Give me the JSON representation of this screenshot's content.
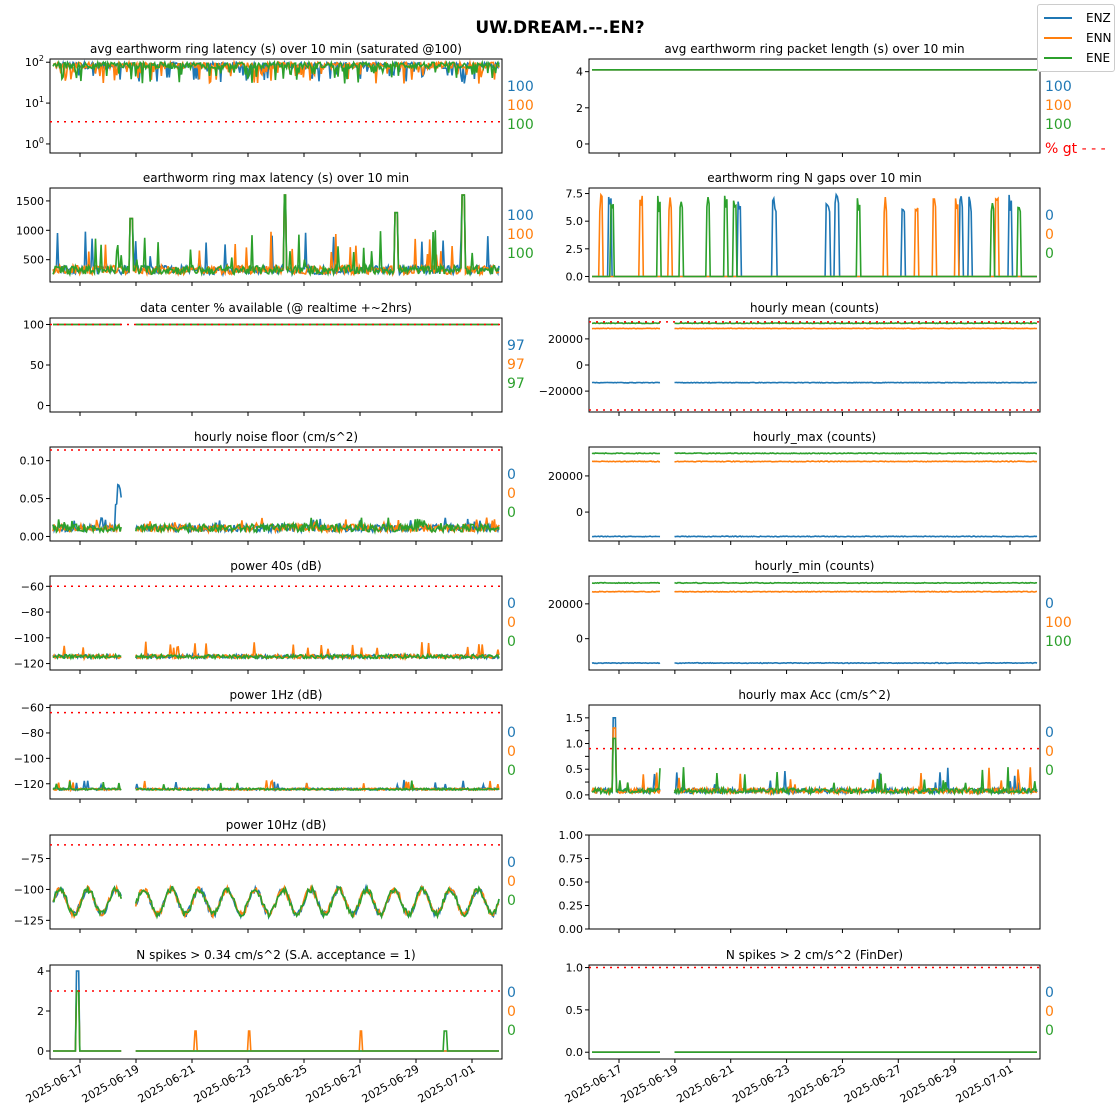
{
  "suptitle": "UW.DREAM.--.EN?",
  "legend": [
    {
      "name": "ENZ",
      "color": "#1f77b4"
    },
    {
      "name": "ENN",
      "color": "#ff7f0e"
    },
    {
      "name": "ENE",
      "color": "#2ca02c"
    }
  ],
  "threshold_color": "#ff0000",
  "date_ticks": [
    "2025-06-17",
    "2025-06-19",
    "2025-06-21",
    "2025-06-23",
    "2025-06-25",
    "2025-06-27",
    "2025-06-29",
    "2025-07-01"
  ],
  "chart_data": [
    {
      "type": "line",
      "title": "avg earthworm ring latency (s)   over 10 min (saturated @100)",
      "yscale": "log",
      "ylim": [
        0.6,
        120
      ],
      "yticks": [
        1,
        10,
        100
      ],
      "yticklabels": [
        "10^0",
        "10^1",
        "10^2"
      ],
      "threshold": 3.5,
      "pct": [
        "100",
        "100",
        "100"
      ],
      "pattern": "latency",
      "base": 85,
      "xticklabels": false
    },
    {
      "type": "line",
      "title": "avg earthworm ring packet length (s)   over 10 min",
      "ylim": [
        -0.5,
        4.7
      ],
      "yticks": [
        0,
        2,
        4
      ],
      "yticklabels": [
        "0",
        "2",
        "4"
      ],
      "threshold": null,
      "pct": [
        "100",
        "100",
        "100"
      ],
      "pct_label": "% gt - - -",
      "pattern": "flat",
      "base": 4.1,
      "xticklabels": false
    },
    {
      "type": "line",
      "title": "earthworm ring max latency (s)   over 10 min",
      "ylim": [
        120,
        1720
      ],
      "yticks": [
        500,
        1000,
        1500
      ],
      "yticklabels": [
        "500",
        "1000",
        "1500"
      ],
      "threshold": null,
      "pct": [
        "100",
        "100",
        "100"
      ],
      "pattern": "maxlat",
      "base": 300,
      "xticklabels": false
    },
    {
      "type": "line",
      "title": "earthworm ring N gaps   over 10 min",
      "ylim": [
        -0.5,
        8
      ],
      "yticks": [
        0,
        2.5,
        5,
        7.5
      ],
      "yticklabels": [
        "0.0",
        "2.5",
        "5.0",
        "7.5"
      ],
      "threshold": null,
      "pct": [
        "0",
        "0",
        "0"
      ],
      "pattern": "gaps",
      "base": 0,
      "xticklabels": false
    },
    {
      "type": "line",
      "title": "data center % available (@ realtime +~2hrs)",
      "ylim": [
        -8,
        108
      ],
      "yticks": [
        0,
        50,
        100
      ],
      "yticklabels": [
        "0",
        "50",
        "100"
      ],
      "threshold": 100,
      "pct": [
        "97",
        "97",
        "97"
      ],
      "pattern": "avail",
      "base": 100,
      "xticklabels": false
    },
    {
      "type": "line",
      "title": "hourly mean (counts)",
      "ylim": [
        -36000,
        36000
      ],
      "yticks": [
        -20000,
        0,
        20000
      ],
      "yticklabels": [
        "−20000",
        "0",
        "20000"
      ],
      "threshold": 33000,
      "threshold2": -34500,
      "pct": [
        "",
        "",
        ""
      ],
      "pattern": "const",
      "values": [
        -13500,
        28000,
        32000
      ],
      "xticklabels": false
    },
    {
      "type": "line",
      "title": "hourly noise floor (cm/s^2)",
      "ylim": [
        -0.006,
        0.118
      ],
      "yticks": [
        0,
        0.05,
        0.1
      ],
      "yticklabels": [
        "0.00",
        "0.05",
        "0.10"
      ],
      "threshold": 0.114,
      "pct": [
        "0",
        "0",
        "0"
      ],
      "pattern": "noise",
      "base": 0.008,
      "xticklabels": false
    },
    {
      "type": "line",
      "title": "hourly_max (counts)",
      "ylim": [
        -16000,
        36000
      ],
      "yticks": [
        0,
        20000
      ],
      "yticklabels": [
        "0",
        "20000"
      ],
      "threshold": null,
      "pct": [
        "",
        "",
        ""
      ],
      "pattern": "const",
      "values": [
        -13500,
        28000,
        32500
      ],
      "xticklabels": false
    },
    {
      "type": "line",
      "title": "power 40s (dB)",
      "ylim": [
        -125,
        -52
      ],
      "yticks": [
        -120,
        -100,
        -80,
        -60
      ],
      "yticklabels": [
        "−120",
        "−100",
        "−80",
        "−60"
      ],
      "threshold": -60,
      "pct": [
        "0",
        "0",
        "0"
      ],
      "pattern": "p40",
      "base": -115,
      "xticklabels": false
    },
    {
      "type": "line",
      "title": "hourly_min (counts)",
      "ylim": [
        -18000,
        36000
      ],
      "yticks": [
        0,
        20000
      ],
      "yticklabels": [
        "0",
        "20000"
      ],
      "threshold": null,
      "pct": [
        "0",
        "100",
        "100"
      ],
      "pattern": "const",
      "values": [
        -14000,
        27000,
        32000
      ],
      "xticklabels": false
    },
    {
      "type": "line",
      "title": "power 1Hz (dB)",
      "ylim": [
        -132,
        -58
      ],
      "yticks": [
        -120,
        -100,
        -80,
        -60
      ],
      "yticklabels": [
        "−120",
        "−100",
        "−80",
        "−60"
      ],
      "threshold": -64,
      "pct": [
        "0",
        "0",
        "0"
      ],
      "pattern": "p1",
      "base": -125,
      "xticklabels": false
    },
    {
      "type": "line",
      "title": "hourly max Acc (cm/s^2)",
      "ylim": [
        -0.08,
        1.75
      ],
      "yticks": [
        0,
        0.25,
        0.5,
        0.75,
        1,
        1.25,
        1.5
      ],
      "yticklabels": [
        "0.0",
        "",
        "0.5",
        "",
        "1.0",
        "",
        "1.5"
      ],
      "threshold": 0.9,
      "pct": [
        "0",
        "0",
        "0"
      ],
      "pattern": "acc",
      "base": 0.08,
      "xticklabels": false
    },
    {
      "type": "line",
      "title": "power 10Hz (dB)",
      "ylim": [
        -132,
        -56
      ],
      "yticks": [
        -125,
        -100,
        -75
      ],
      "yticklabels": [
        "−125",
        "−100",
        "−75"
      ],
      "threshold": -64,
      "pct": [
        "0",
        "0",
        "0"
      ],
      "pattern": "p10",
      "base": -110,
      "xticklabels": false
    },
    {
      "type": "line",
      "title": "",
      "ylim": [
        0,
        1
      ],
      "yticks": [
        0,
        0.25,
        0.5,
        0.75,
        1
      ],
      "yticklabels": [
        "0.00",
        "0.25",
        "0.50",
        "0.75",
        "1.00"
      ],
      "threshold": null,
      "pct": [
        "",
        "",
        ""
      ],
      "pattern": "empty",
      "xticklabels": false
    },
    {
      "type": "line",
      "title": "N spikes > 0.34 cm/s^2 (S.A. acceptance = 1)",
      "ylim": [
        -0.4,
        4.3
      ],
      "yticks": [
        0,
        2,
        4
      ],
      "yticklabels": [
        "0",
        "2",
        "4"
      ],
      "threshold": 3,
      "pct": [
        "0",
        "0",
        "0"
      ],
      "pattern": "spikes",
      "base": 0,
      "xticklabels": true
    },
    {
      "type": "line",
      "title": "N spikes > 2 cm/s^2 (FinDer)",
      "ylim": [
        -0.08,
        1.03
      ],
      "yticks": [
        0,
        0.5,
        1
      ],
      "yticklabels": [
        "0.0",
        "0.5",
        "1.0"
      ],
      "threshold": 1,
      "pct": [
        "0",
        "0",
        "0"
      ],
      "pattern": "zero",
      "base": 0,
      "xticklabels": true
    }
  ]
}
